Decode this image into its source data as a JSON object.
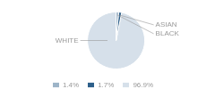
{
  "chart_data": {
    "type": "pie",
    "categories": [
      "WHITE",
      "ASIAN",
      "BLACK"
    ],
    "values": [
      96.9,
      1.7,
      1.4
    ],
    "value_labels": [
      "96.9%",
      "1.7%",
      "1.4%"
    ],
    "colors": [
      "#d6e0ea",
      "#2d5f8a",
      "#9db4c8"
    ],
    "legend": "bottom"
  }
}
